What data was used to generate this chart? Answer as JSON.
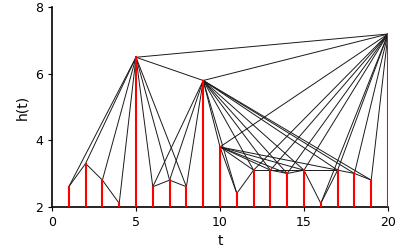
{
  "t": [
    1,
    2,
    3,
    4,
    5,
    6,
    7,
    8,
    9,
    10,
    11,
    12,
    13,
    14,
    15,
    16,
    17,
    18,
    19,
    20
  ],
  "h": [
    2.6,
    3.3,
    2.8,
    2.1,
    6.5,
    2.6,
    2.8,
    2.6,
    5.8,
    3.8,
    2.4,
    3.1,
    3.1,
    3.0,
    3.1,
    2.1,
    3.1,
    3.0,
    2.8,
    7.2
  ],
  "xlim": [
    0,
    20
  ],
  "ylim": [
    2,
    8
  ],
  "xlabel": "t",
  "ylabel": "h(t)",
  "bar_color": "#ff0000",
  "line_color": "#1a1a1a",
  "background_color": "#ffffff",
  "tick_labelsize": 9,
  "axis_labelsize": 10,
  "bar_bottom": 2.0
}
